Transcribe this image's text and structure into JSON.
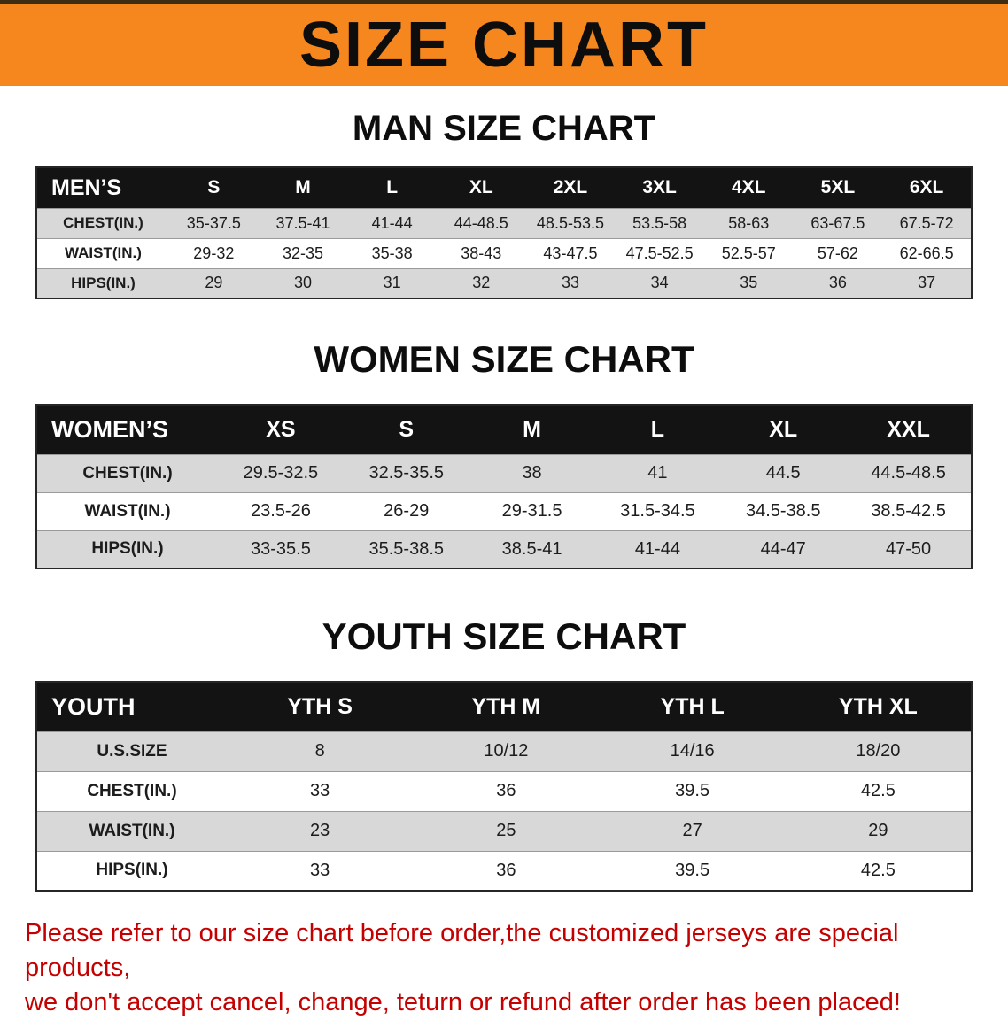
{
  "banner": {
    "title": "SIZE CHART"
  },
  "colors": {
    "banner_bg": "#f5871e",
    "table_header_bg": "#131313",
    "row_stripe": "#d8d8d8",
    "notice_text": "#c40000"
  },
  "men": {
    "heading": "MAN SIZE CHART",
    "header": [
      "MEN’S",
      "S",
      "M",
      "L",
      "XL",
      "2XL",
      "3XL",
      "4XL",
      "5XL",
      "6XL"
    ],
    "rows": [
      {
        "label": "CHEST(IN.)",
        "values": [
          "35-37.5",
          "37.5-41",
          "41-44",
          "44-48.5",
          "48.5-53.5",
          "53.5-58",
          "58-63",
          "63-67.5",
          "67.5-72"
        ]
      },
      {
        "label": "WAIST(IN.)",
        "values": [
          "29-32",
          "32-35",
          "35-38",
          "38-43",
          "43-47.5",
          "47.5-52.5",
          "52.5-57",
          "57-62",
          "62-66.5"
        ]
      },
      {
        "label": "HIPS(IN.)",
        "values": [
          "29",
          "30",
          "31",
          "32",
          "33",
          "34",
          "35",
          "36",
          "37"
        ]
      }
    ]
  },
  "women": {
    "heading": "WOMEN SIZE CHART",
    "header": [
      "WOMEN’S",
      "XS",
      "S",
      "M",
      "L",
      "XL",
      "XXL"
    ],
    "rows": [
      {
        "label": "CHEST(IN.)",
        "values": [
          "29.5-32.5",
          "32.5-35.5",
          "38",
          "41",
          "44.5",
          "44.5-48.5"
        ]
      },
      {
        "label": "WAIST(IN.)",
        "values": [
          "23.5-26",
          "26-29",
          "29-31.5",
          "31.5-34.5",
          "34.5-38.5",
          "38.5-42.5"
        ]
      },
      {
        "label": "HIPS(IN.)",
        "values": [
          "33-35.5",
          "35.5-38.5",
          "38.5-41",
          "41-44",
          "44-47",
          "47-50"
        ]
      }
    ]
  },
  "youth": {
    "heading": "YOUTH SIZE CHART",
    "header": [
      "YOUTH",
      "YTH S",
      "YTH M",
      "YTH L",
      "YTH XL"
    ],
    "rows": [
      {
        "label": "U.S.SIZE",
        "values": [
          "8",
          "10/12",
          "14/16",
          "18/20"
        ]
      },
      {
        "label": "CHEST(IN.)",
        "values": [
          "33",
          "36",
          "39.5",
          "42.5"
        ]
      },
      {
        "label": "WAIST(IN.)",
        "values": [
          "23",
          "25",
          "27",
          "29"
        ]
      },
      {
        "label": "HIPS(IN.)",
        "values": [
          "33",
          "36",
          "39.5",
          "42.5"
        ]
      }
    ]
  },
  "notice": {
    "line1": "Please refer to our size chart before order,the customized jerseys are special products,",
    "line2": "we don't accept cancel, change, teturn or refund after order has been placed!"
  }
}
